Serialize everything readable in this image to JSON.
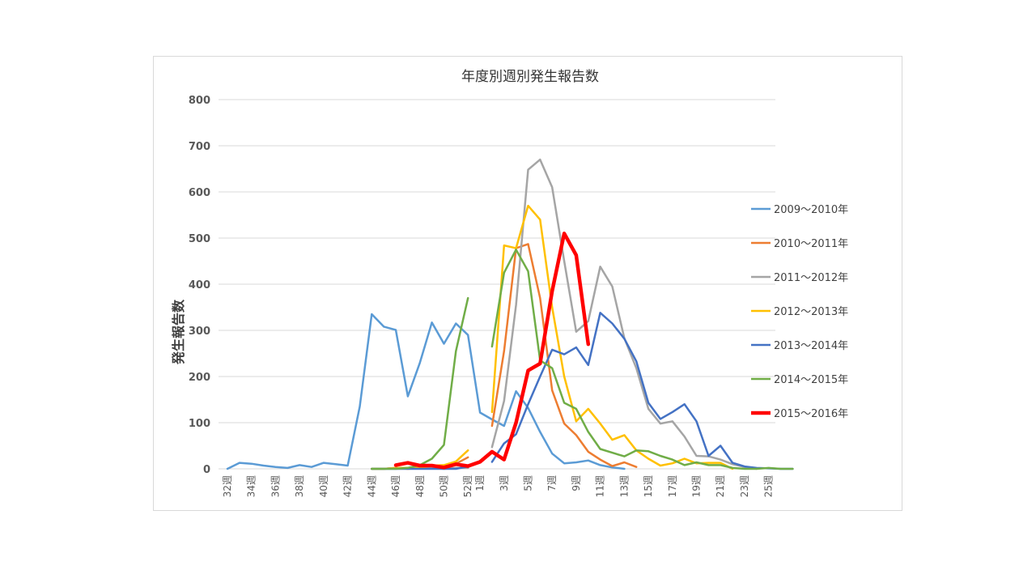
{
  "chart_data": {
    "type": "line",
    "title": "年度別週別発生報告数",
    "ylabel": "発生報告数",
    "xlabel": "",
    "ylim": [
      0,
      800
    ],
    "yticks": [
      0,
      100,
      200,
      300,
      400,
      500,
      600,
      700,
      800
    ],
    "grid": true,
    "legend_position": "right",
    "x_labels": [
      "32週",
      "",
      "34週",
      "",
      "36週",
      "",
      "38週",
      "",
      "40週",
      "",
      "42週",
      "",
      "44週",
      "",
      "46週",
      "",
      "48週",
      "",
      "50週",
      "",
      "52週",
      "1週",
      "",
      "3週",
      "",
      "5週",
      "",
      "7週",
      "",
      "9週",
      "",
      "11週",
      "",
      "13週",
      "",
      "15週",
      "",
      "17週",
      "",
      "19週",
      "",
      "21週",
      "",
      "23週",
      "",
      "25週",
      ""
    ],
    "series": [
      {
        "name": "2009～2010年",
        "color": "#5B9BD5",
        "values": [
          0,
          13,
          11,
          7,
          4,
          2,
          8,
          4,
          13,
          10,
          7,
          135,
          335,
          308,
          301,
          157,
          230,
          317,
          271,
          315,
          290,
          122,
          107,
          93,
          168,
          132,
          80,
          33,
          12,
          14,
          18,
          8,
          3,
          0,
          null,
          null,
          null,
          null,
          null,
          null,
          null,
          null,
          null,
          null,
          null,
          null,
          null,
          null,
          null,
          null
        ]
      },
      {
        "name": "2010～2011年",
        "color": "#ED7D31",
        "values": [
          null,
          null,
          null,
          null,
          null,
          null,
          null,
          null,
          null,
          null,
          null,
          null,
          0,
          0,
          2,
          0,
          2,
          2,
          5,
          11,
          25,
          null,
          93,
          255,
          478,
          487,
          370,
          170,
          98,
          73,
          37,
          20,
          6,
          14,
          4,
          null,
          null,
          null,
          null,
          null,
          null,
          null,
          null,
          null,
          null,
          null,
          null,
          null,
          null,
          null
        ]
      },
      {
        "name": "2011～2012年",
        "color": "#A5A5A5",
        "values": [
          null,
          null,
          null,
          null,
          null,
          null,
          null,
          null,
          null,
          null,
          null,
          null,
          0,
          0,
          2,
          2,
          2,
          2,
          0,
          2,
          2,
          null,
          47,
          147,
          355,
          648,
          670,
          610,
          450,
          297,
          320,
          438,
          395,
          283,
          218,
          130,
          98,
          103,
          70,
          28,
          27,
          20,
          10,
          4,
          0,
          null,
          null,
          null,
          null,
          null
        ]
      },
      {
        "name": "2012～2013年",
        "color": "#FFC000",
        "values": [
          null,
          null,
          null,
          null,
          null,
          null,
          null,
          null,
          null,
          null,
          null,
          null,
          0,
          0,
          2,
          2,
          2,
          7,
          8,
          16,
          40,
          null,
          123,
          484,
          478,
          570,
          540,
          350,
          200,
          103,
          130,
          98,
          63,
          73,
          40,
          22,
          7,
          12,
          22,
          12,
          13,
          13,
          0,
          null,
          null,
          null,
          null,
          null,
          null,
          null
        ]
      },
      {
        "name": "2013～2014年",
        "color": "#4472C4",
        "values": [
          null,
          null,
          null,
          null,
          null,
          null,
          null,
          null,
          null,
          null,
          null,
          null,
          0,
          0,
          0,
          0,
          0,
          0,
          0,
          0,
          5,
          null,
          15,
          55,
          75,
          140,
          200,
          258,
          248,
          263,
          225,
          338,
          315,
          282,
          233,
          143,
          108,
          123,
          140,
          103,
          28,
          50,
          13,
          5,
          2,
          1,
          0,
          0,
          null,
          null
        ]
      },
      {
        "name": "2014～2015年",
        "color": "#70AD47",
        "values": [
          null,
          null,
          null,
          null,
          null,
          null,
          null,
          null,
          null,
          null,
          null,
          null,
          0,
          0,
          0,
          2,
          8,
          22,
          52,
          255,
          370,
          null,
          265,
          425,
          475,
          428,
          235,
          218,
          143,
          130,
          80,
          43,
          35,
          27,
          40,
          38,
          28,
          20,
          8,
          14,
          8,
          8,
          2,
          0,
          0,
          2,
          0,
          0,
          null,
          null
        ]
      },
      {
        "name": "2015～2016年",
        "color": "#FF0000",
        "values": [
          null,
          null,
          null,
          null,
          null,
          null,
          null,
          null,
          null,
          null,
          null,
          null,
          null,
          null,
          8,
          13,
          7,
          7,
          3,
          10,
          6,
          15,
          37,
          20,
          100,
          213,
          228,
          385,
          510,
          463,
          270,
          null,
          null,
          null,
          null,
          null,
          null,
          null,
          null,
          null,
          null,
          null,
          null,
          null,
          null,
          null,
          null,
          null,
          null,
          null
        ]
      }
    ]
  }
}
